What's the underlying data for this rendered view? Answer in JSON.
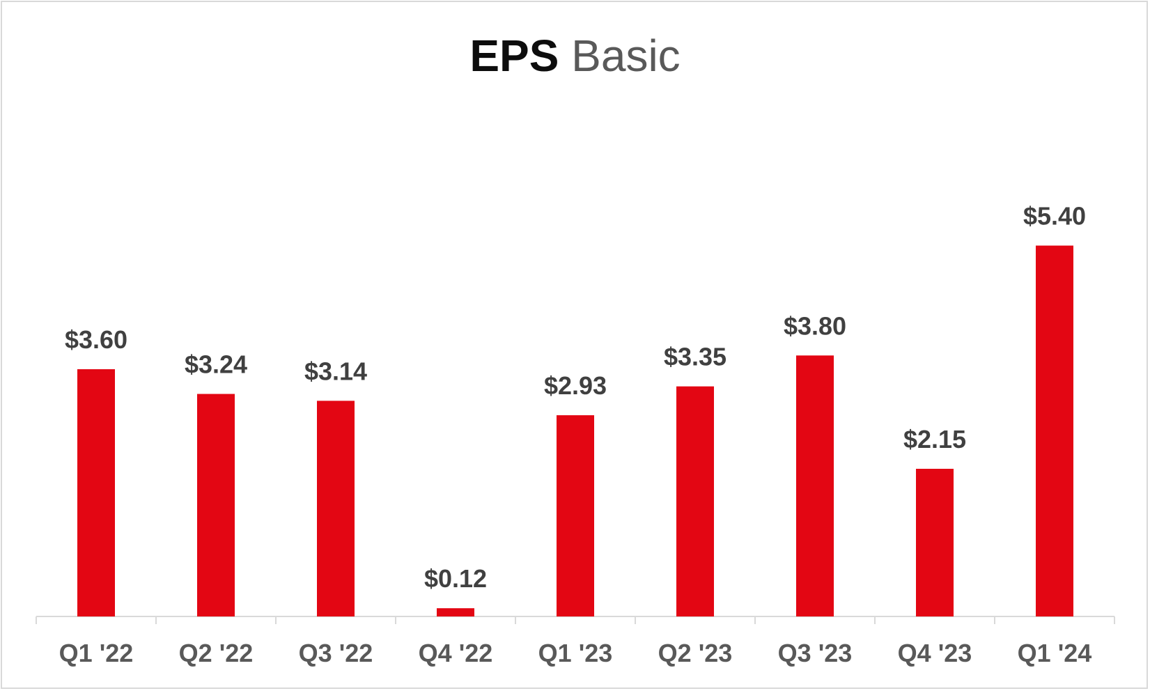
{
  "chart_data": {
    "type": "bar",
    "title": "EPS",
    "subtitle": "Basic",
    "categories": [
      "Q1 '22",
      "Q2 '22",
      "Q3 '22",
      "Q4 '22",
      "Q1 '23",
      "Q2 '23",
      "Q3 '23",
      "Q4 '23",
      "Q1 '24"
    ],
    "values": [
      3.6,
      3.24,
      3.14,
      0.12,
      2.93,
      3.35,
      3.8,
      2.15,
      5.4
    ],
    "data_labels": [
      "$3.60",
      "$3.24",
      "$3.14",
      "$0.12",
      "$2.93",
      "$3.35",
      "$3.80",
      "$2.15",
      "$5.40"
    ],
    "xlabel": "",
    "ylabel": "",
    "ylim": [
      0,
      5.6
    ],
    "grid": false,
    "legend": "none",
    "bar_color": "#e30613",
    "axis_color": "#d9d9d9"
  }
}
